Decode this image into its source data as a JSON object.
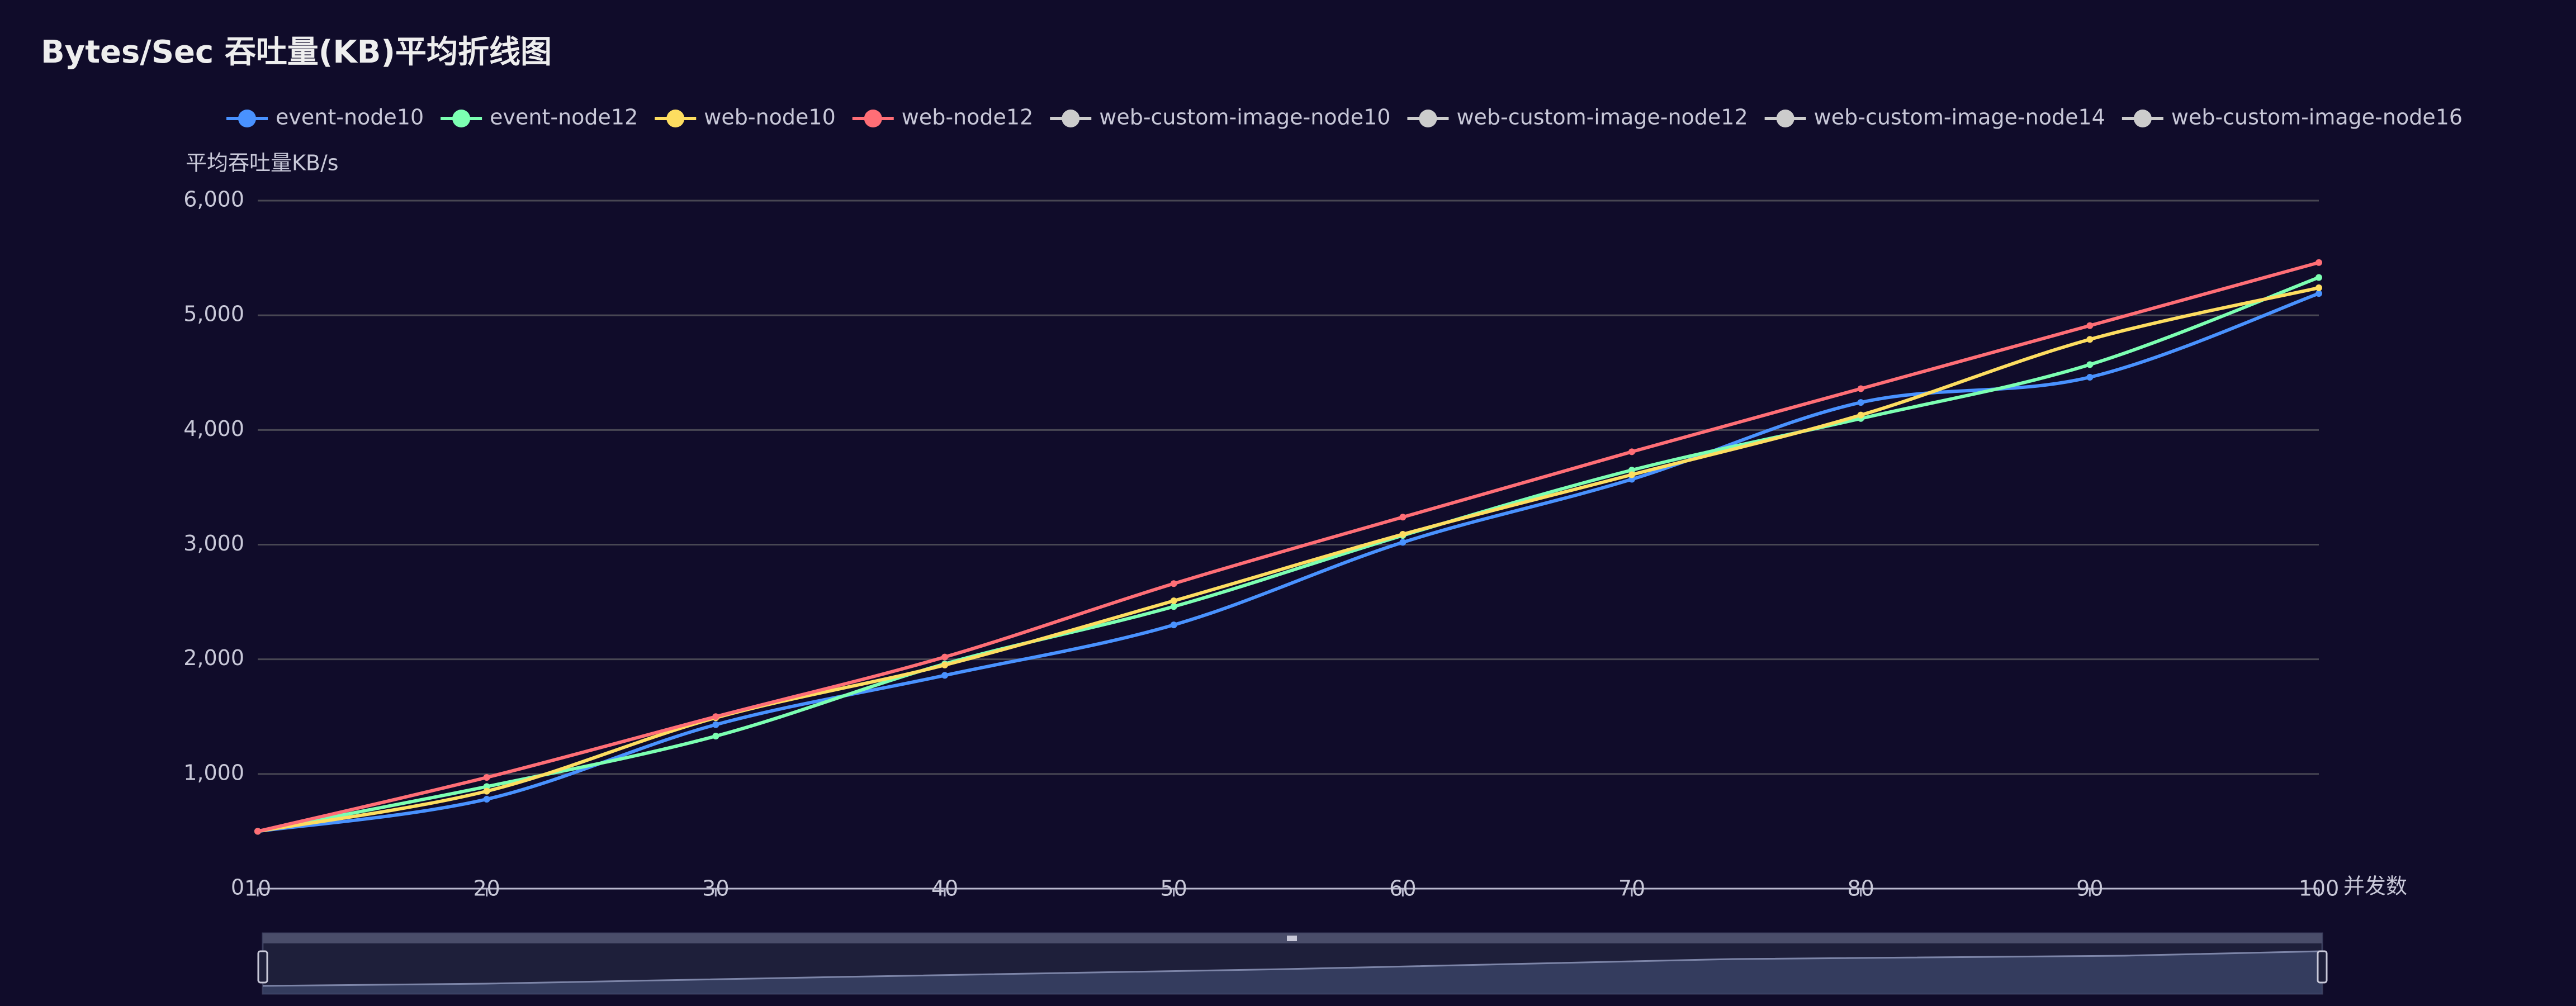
{
  "chart_data": {
    "type": "line",
    "title": "Bytes/Sec 吞吐量(KB)平均折线图",
    "y_label": "平均吞吐量KB/s",
    "x_label": "并发数",
    "x": [
      10,
      20,
      30,
      40,
      50,
      60,
      70,
      80,
      90,
      100
    ],
    "xlim": [
      10,
      100
    ],
    "xticks": [
      10,
      20,
      30,
      40,
      50,
      60,
      70,
      80,
      90,
      100
    ],
    "ylim": [
      0,
      6000
    ],
    "yticks": [
      0,
      {
        "value": 1000,
        "label": "1,000"
      },
      {
        "value": 2000,
        "label": "2,000"
      },
      {
        "value": 3000,
        "label": "3,000"
      },
      {
        "value": 4000,
        "label": "4,000"
      },
      {
        "value": 5000,
        "label": "5,000"
      },
      {
        "value": 6000,
        "label": "6,000"
      }
    ],
    "grid": true,
    "smooth": true,
    "series": [
      {
        "name": "event-node10",
        "color": "#4992ff",
        "values": [
          500,
          780,
          1430,
          1860,
          2300,
          3020,
          3570,
          4240,
          4460,
          5190
        ]
      },
      {
        "name": "event-node12",
        "color": "#7cffb2",
        "values": [
          500,
          890,
          1330,
          1960,
          2460,
          3080,
          3650,
          4100,
          4570,
          5330
        ]
      },
      {
        "name": "web-node10",
        "color": "#fddd60",
        "values": [
          500,
          850,
          1490,
          1950,
          2510,
          3090,
          3610,
          4130,
          4790,
          5240
        ]
      },
      {
        "name": "web-node12",
        "color": "#ff6e76",
        "values": [
          500,
          970,
          1500,
          2020,
          2660,
          3240,
          3810,
          4360,
          4910,
          5460
        ]
      },
      {
        "name": "web-custom-image-node10",
        "color": "#cccccc",
        "values": [
          null,
          null,
          null,
          null,
          null,
          null,
          null,
          null,
          null,
          null
        ]
      },
      {
        "name": "web-custom-image-node12",
        "color": "#cccccc",
        "values": [
          null,
          null,
          null,
          null,
          null,
          null,
          null,
          null,
          null,
          null
        ]
      },
      {
        "name": "web-custom-image-node14",
        "color": "#cccccc",
        "values": [
          null,
          null,
          null,
          null,
          null,
          null,
          null,
          null,
          null,
          null
        ]
      },
      {
        "name": "web-custom-image-node16",
        "color": "#cccccc",
        "values": [
          null,
          null,
          null,
          null,
          null,
          null,
          null,
          null,
          null,
          null
        ]
      }
    ]
  }
}
